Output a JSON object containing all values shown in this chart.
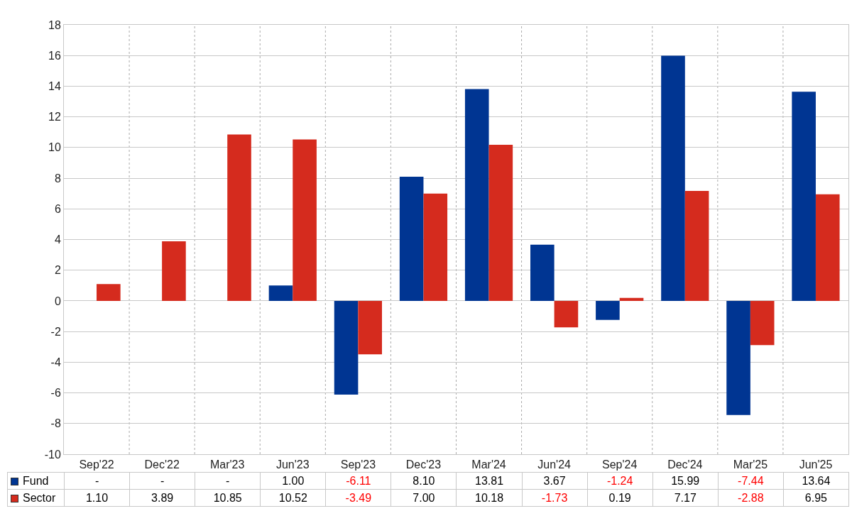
{
  "chart_data": {
    "type": "bar",
    "categories": [
      "Sep'22",
      "Dec'22",
      "Mar'23",
      "Jun'23",
      "Sep'23",
      "Dec'23",
      "Mar'24",
      "Jun'24",
      "Sep'24",
      "Dec'24",
      "Mar'25",
      "Jun'25"
    ],
    "series": [
      {
        "name": "Fund",
        "color": "#003592",
        "values": [
          null,
          null,
          null,
          1.0,
          -6.11,
          8.1,
          13.81,
          3.67,
          -1.24,
          15.99,
          -7.44,
          13.64
        ],
        "value_labels": [
          "-",
          "-",
          "-",
          "1.00",
          "-6.11",
          "8.10",
          "13.81",
          "3.67",
          "-1.24",
          "15.99",
          "-7.44",
          "13.64"
        ]
      },
      {
        "name": "Sector",
        "color": "#d52b1e",
        "values": [
          1.1,
          3.89,
          10.85,
          10.52,
          -3.49,
          7.0,
          10.18,
          -1.73,
          0.19,
          7.17,
          -2.88,
          6.95
        ],
        "value_labels": [
          "1.10",
          "3.89",
          "10.85",
          "10.52",
          "-3.49",
          "7.00",
          "10.18",
          "-1.73",
          "0.19",
          "7.17",
          "-2.88",
          "6.95"
        ]
      }
    ],
    "ylim": [
      -10,
      18
    ],
    "yticks": [
      -10,
      -8,
      -6,
      -4,
      -2,
      0,
      2,
      4,
      6,
      8,
      10,
      12,
      14,
      16,
      18
    ],
    "grid": true,
    "legend": "bottom"
  }
}
